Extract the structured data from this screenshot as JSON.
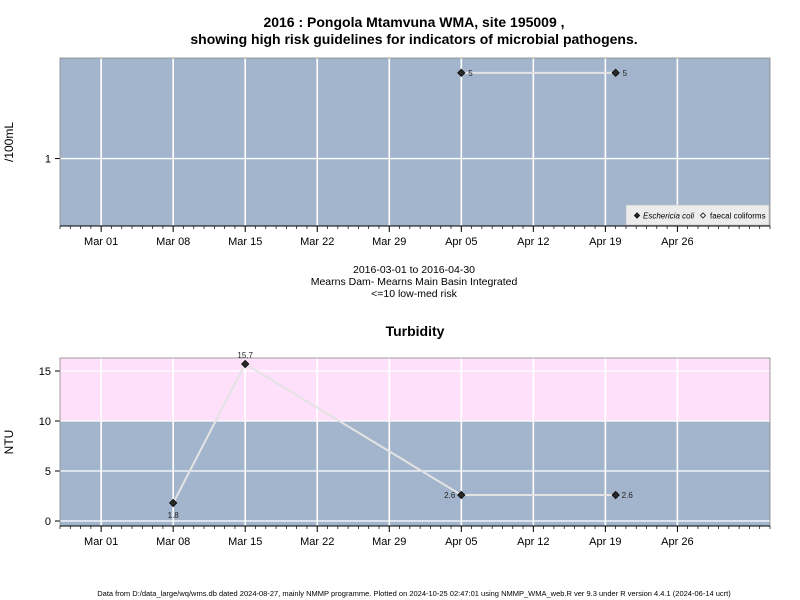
{
  "title_line1": "2016 : Pongola Mtamvuna WMA, site 195009 ,",
  "title_line2": "showing high risk guidelines for indicators of microbial pathogens.",
  "info_lines": [
    "2016-03-01 to 2016-04-30",
    "Mearns Dam- Mearns Main Basin Integrated",
    "<=10 low-med risk"
  ],
  "footer": "Data from D:/data_large/wq/wms.db dated 2024-08-27, mainly NMMP programme. Plotted on 2024-10-25 02:47:01 using NMMP_WMA_web.R ver 9.3 under R version 4.4.1 (2024-06-14 ucrt)",
  "colors": {
    "panel_bg": "#a3b5cc",
    "risk_band": "#ffe0fb",
    "grid": "#ffffff",
    "line": "#e3e3e3",
    "point": "#2b2b2b",
    "legend_bg": "#ececec"
  },
  "chart_data": [
    {
      "type": "line",
      "ylabel": "/100mL",
      "y_scale": "log",
      "y_ticks": [
        {
          "value": 1,
          "label": "1"
        }
      ],
      "xlim": [
        "2016-02-26",
        "2016-05-05"
      ],
      "x_ticks": [
        {
          "date": "2016-03-01",
          "label": "Mar 01"
        },
        {
          "date": "2016-03-08",
          "label": "Mar 08"
        },
        {
          "date": "2016-03-15",
          "label": "Mar 15"
        },
        {
          "date": "2016-03-22",
          "label": "Mar 22"
        },
        {
          "date": "2016-03-29",
          "label": "Mar 29"
        },
        {
          "date": "2016-04-05",
          "label": "Apr 05"
        },
        {
          "date": "2016-04-12",
          "label": "Apr 12"
        },
        {
          "date": "2016-04-19",
          "label": "Apr 19"
        },
        {
          "date": "2016-04-26",
          "label": "Apr 26"
        }
      ],
      "grid": true,
      "series": [
        {
          "name": "Eschericia coli",
          "marker": "filled-diamond",
          "points": [
            {
              "x": "2016-04-05",
              "y": 5,
              "label": "5"
            },
            {
              "x": "2016-04-20",
              "y": 5,
              "label": "5"
            }
          ]
        },
        {
          "name": "faecal coliforms",
          "marker": "open-diamond",
          "points": []
        }
      ],
      "legend_position": "bottom-right"
    },
    {
      "type": "line",
      "title": "Turbidity",
      "ylabel": "NTU",
      "ylim": [
        -0.5,
        16.3
      ],
      "y_ticks": [
        {
          "value": 0,
          "label": "0"
        },
        {
          "value": 5,
          "label": "5"
        },
        {
          "value": 10,
          "label": "10"
        },
        {
          "value": 15,
          "label": "15"
        }
      ],
      "risk_band": [
        10,
        16.3
      ],
      "xlim": [
        "2016-02-26",
        "2016-05-05"
      ],
      "x_ticks": [
        {
          "date": "2016-03-01",
          "label": "Mar 01"
        },
        {
          "date": "2016-03-08",
          "label": "Mar 08"
        },
        {
          "date": "2016-03-15",
          "label": "Mar 15"
        },
        {
          "date": "2016-03-22",
          "label": "Mar 22"
        },
        {
          "date": "2016-03-29",
          "label": "Mar 29"
        },
        {
          "date": "2016-04-05",
          "label": "Apr 05"
        },
        {
          "date": "2016-04-12",
          "label": "Apr 12"
        },
        {
          "date": "2016-04-19",
          "label": "Apr 19"
        },
        {
          "date": "2016-04-26",
          "label": "Apr 26"
        }
      ],
      "grid": true,
      "series": [
        {
          "points": [
            {
              "x": "2016-03-08",
              "y": 1.8,
              "label": "1.8",
              "label_pos": "below"
            },
            {
              "x": "2016-03-15",
              "y": 15.7,
              "label": "15.7",
              "label_pos": "above"
            },
            {
              "x": "2016-04-05",
              "y": 2.6,
              "label": "2.6",
              "label_pos": "left"
            },
            {
              "x": "2016-04-20",
              "y": 2.6,
              "label": "2.6",
              "label_pos": "right"
            }
          ]
        }
      ]
    }
  ]
}
